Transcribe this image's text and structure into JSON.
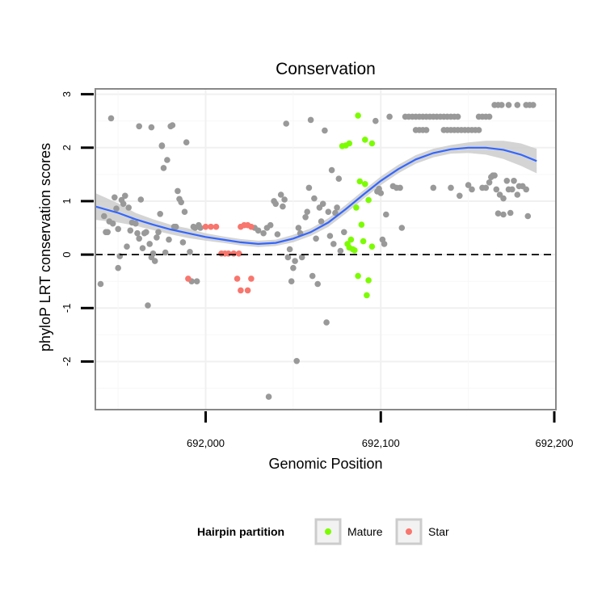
{
  "chart_data": {
    "type": "scatter",
    "title": "Conservation",
    "xlabel": "Genomic Position",
    "ylabel": "phyloP LRT conservation scores",
    "xlim": [
      691937,
      692200
    ],
    "ylim": [
      -2.9,
      3.1
    ],
    "x_ticks": [
      692000,
      692100,
      692200
    ],
    "x_tick_labels": [
      "692,000",
      "692,100",
      "692,200"
    ],
    "y_ticks": [
      -2,
      -1,
      0,
      1,
      2,
      3
    ],
    "y_tick_labels": [
      "-2",
      "-1",
      "0",
      "1",
      "2",
      "3"
    ],
    "grid": true,
    "reference_line": {
      "y": 0,
      "style": "dashed"
    },
    "legend": {
      "title": "Hairpin partition",
      "placement": "bottom",
      "entries": [
        {
          "name": "Mature",
          "color": "#7cfc00"
        },
        {
          "name": "Star",
          "color": "#f8766d"
        }
      ]
    },
    "colors": {
      "other": "#999999",
      "mature": "#7cfc00",
      "star": "#f8766d",
      "smooth": "#3366ff",
      "ribbon": "#cccccc"
    },
    "series": [
      {
        "name": "Mature",
        "color": "#7cfc00",
        "points": [
          [
            692082,
            2.08
          ],
          [
            692078,
            2.03
          ],
          [
            692080,
            2.04
          ],
          [
            692087,
            2.6
          ],
          [
            692091,
            2.15
          ],
          [
            692095,
            2.08
          ],
          [
            692088,
            1.37
          ],
          [
            692091,
            1.32
          ],
          [
            692093,
            1.02
          ],
          [
            692086,
            0.88
          ],
          [
            692089,
            0.56
          ],
          [
            692083,
            0.28
          ],
          [
            692090,
            0.25
          ],
          [
            692095,
            0.15
          ],
          [
            692081,
            0.2
          ],
          [
            692084,
            0.1
          ],
          [
            692085,
            0.08
          ],
          [
            692082,
            0.13
          ],
          [
            692087,
            -0.4
          ],
          [
            692093,
            -0.48
          ],
          [
            692092,
            -0.76
          ]
        ]
      },
      {
        "name": "Star",
        "color": "#f8766d",
        "points": [
          [
            692000,
            0.52
          ],
          [
            692003,
            0.52
          ],
          [
            692006,
            0.52
          ],
          [
            692009,
            0.02
          ],
          [
            692011,
            0.02
          ],
          [
            692013,
            0.02
          ],
          [
            692016,
            0.02
          ],
          [
            692019,
            0.02
          ],
          [
            692020,
            0.52
          ],
          [
            692022,
            0.55
          ],
          [
            692024,
            0.55
          ],
          [
            692026,
            0.52
          ],
          [
            691990,
            -0.45
          ],
          [
            692018,
            -0.45
          ],
          [
            692026,
            -0.45
          ],
          [
            692020,
            -0.67
          ],
          [
            692024,
            -0.67
          ]
        ]
      },
      {
        "name": "",
        "color": "#999999",
        "points": [
          [
            691940,
            -0.55
          ],
          [
            691942,
            0.72
          ],
          [
            691943,
            0.42
          ],
          [
            691944,
            0.42
          ],
          [
            691945,
            0.62
          ],
          [
            691947,
            0.58
          ],
          [
            691948,
            1.07
          ],
          [
            691949,
            0.86
          ],
          [
            691950,
            0.48
          ],
          [
            691951,
            -0.03
          ],
          [
            691952,
            1.02
          ],
          [
            691953,
            0.95
          ],
          [
            691954,
            1.1
          ],
          [
            691955,
            0.15
          ],
          [
            691956,
            0.88
          ],
          [
            691957,
            0.45
          ],
          [
            691958,
            0.6
          ],
          [
            691960,
            0.58
          ],
          [
            691961,
            0.4
          ],
          [
            691962,
            0.3
          ],
          [
            691963,
            1.03
          ],
          [
            691964,
            0.12
          ],
          [
            691965,
            0.4
          ],
          [
            691966,
            0.42
          ],
          [
            691967,
            -0.95
          ],
          [
            691968,
            0.2
          ],
          [
            691969,
            -0.05
          ],
          [
            691970,
            0.02
          ],
          [
            691971,
            -0.12
          ],
          [
            691972,
            0.32
          ],
          [
            691973,
            0.42
          ],
          [
            691974,
            0.76
          ],
          [
            691975,
            2.03
          ],
          [
            691976,
            1.62
          ],
          [
            691977,
            0.04
          ],
          [
            691978,
            1.77
          ],
          [
            691979,
            0.28
          ],
          [
            691980,
            2.4
          ],
          [
            691982,
            0.52
          ],
          [
            691983,
            0.52
          ],
          [
            691984,
            1.19
          ],
          [
            691985,
            1.04
          ],
          [
            691986,
            0.98
          ],
          [
            691987,
            0.23
          ],
          [
            691988,
            0.8
          ],
          [
            691989,
            2.1
          ],
          [
            691991,
            0.05
          ],
          [
            691992,
            -0.5
          ],
          [
            691993,
            0.52
          ],
          [
            691994,
            0.5
          ],
          [
            691995,
            -0.5
          ],
          [
            691996,
            0.55
          ],
          [
            691997,
            0.5
          ],
          [
            691946,
            2.55
          ],
          [
            691950,
            -0.25
          ],
          [
            691962,
            2.4
          ],
          [
            691969,
            2.38
          ],
          [
            691975,
            2.04
          ],
          [
            691981,
            2.42
          ],
          [
            692028,
            0.5
          ],
          [
            692030,
            0.45
          ],
          [
            692033,
            0.4
          ],
          [
            692035,
            0.5
          ],
          [
            692036,
            -2.66
          ],
          [
            692037,
            0.55
          ],
          [
            692039,
            1.0
          ],
          [
            692040,
            0.95
          ],
          [
            692041,
            0.38
          ],
          [
            692043,
            1.12
          ],
          [
            692044,
            0.9
          ],
          [
            692045,
            1.03
          ],
          [
            692046,
            2.45
          ],
          [
            692047,
            -0.05
          ],
          [
            692048,
            0.1
          ],
          [
            692049,
            -0.5
          ],
          [
            692050,
            -0.25
          ],
          [
            692051,
            -0.12
          ],
          [
            692052,
            -1.99
          ],
          [
            692053,
            0.5
          ],
          [
            692054,
            0.4
          ],
          [
            692055,
            -0.05
          ],
          [
            692057,
            0.7
          ],
          [
            692058,
            0.8
          ],
          [
            692059,
            1.25
          ],
          [
            692060,
            2.52
          ],
          [
            692061,
            -0.4
          ],
          [
            692062,
            1.05
          ],
          [
            692063,
            0.3
          ],
          [
            692064,
            -0.55
          ],
          [
            692065,
            0.88
          ],
          [
            692066,
            0.62
          ],
          [
            692067,
            0.95
          ],
          [
            692068,
            2.32
          ],
          [
            692069,
            -1.27
          ],
          [
            692070,
            0.8
          ],
          [
            692071,
            0.35
          ],
          [
            692072,
            1.58
          ],
          [
            692073,
            0.2
          ],
          [
            692074,
            0.78
          ],
          [
            692075,
            0.88
          ],
          [
            692076,
            1.42
          ],
          [
            692077,
            0.07
          ],
          [
            692079,
            0.42
          ],
          [
            692097,
            2.5
          ],
          [
            692098,
            1.18
          ],
          [
            692099,
            1.23
          ],
          [
            692100,
            1.15
          ],
          [
            692101,
            0.28
          ],
          [
            692102,
            0.2
          ],
          [
            692103,
            0.75
          ],
          [
            692105,
            2.58
          ],
          [
            692107,
            1.28
          ],
          [
            692109,
            1.25
          ],
          [
            692111,
            1.25
          ],
          [
            692112,
            0.5
          ],
          [
            692114,
            2.58
          ],
          [
            692116,
            2.58
          ],
          [
            692118,
            2.58
          ],
          [
            692120,
            2.58
          ],
          [
            692122,
            2.58
          ],
          [
            692124,
            2.58
          ],
          [
            692126,
            2.58
          ],
          [
            692128,
            2.58
          ],
          [
            692130,
            2.58
          ],
          [
            692132,
            2.58
          ],
          [
            692134,
            2.58
          ],
          [
            692136,
            2.58
          ],
          [
            692138,
            2.58
          ],
          [
            692140,
            2.58
          ],
          [
            692142,
            2.58
          ],
          [
            692144,
            2.58
          ],
          [
            692120,
            2.33
          ],
          [
            692122,
            2.33
          ],
          [
            692124,
            2.33
          ],
          [
            692126,
            2.33
          ],
          [
            692136,
            2.33
          ],
          [
            692138,
            2.33
          ],
          [
            692140,
            2.33
          ],
          [
            692142,
            2.33
          ],
          [
            692144,
            2.33
          ],
          [
            692146,
            2.33
          ],
          [
            692148,
            2.33
          ],
          [
            692150,
            2.33
          ],
          [
            692152,
            2.33
          ],
          [
            692154,
            2.33
          ],
          [
            692156,
            2.33
          ],
          [
            692130,
            1.25
          ],
          [
            692140,
            1.25
          ],
          [
            692145,
            1.1
          ],
          [
            692150,
            1.3
          ],
          [
            692152,
            1.22
          ],
          [
            692156,
            2.58
          ],
          [
            692158,
            2.58
          ],
          [
            692160,
            2.58
          ],
          [
            692162,
            2.58
          ],
          [
            692158,
            1.25
          ],
          [
            692160,
            1.25
          ],
          [
            692162,
            1.35
          ],
          [
            692163,
            1.45
          ],
          [
            692164,
            1.48
          ],
          [
            692165,
            1.48
          ],
          [
            692166,
            1.22
          ],
          [
            692167,
            0.77
          ],
          [
            692168,
            1.12
          ],
          [
            692170,
            0.75
          ],
          [
            692172,
            1.38
          ],
          [
            692173,
            1.22
          ],
          [
            692175,
            1.22
          ],
          [
            692176,
            1.38
          ],
          [
            692178,
            1.12
          ],
          [
            692179,
            1.28
          ],
          [
            692181,
            1.28
          ],
          [
            692183,
            1.22
          ],
          [
            692184,
            0.72
          ],
          [
            692165,
            2.8
          ],
          [
            692167,
            2.8
          ],
          [
            692169,
            2.8
          ],
          [
            692173,
            2.8
          ],
          [
            692178,
            2.8
          ],
          [
            692183,
            2.8
          ],
          [
            692185,
            2.8
          ],
          [
            692187,
            2.8
          ],
          [
            692170,
            1.05
          ],
          [
            692174,
            0.78
          ]
        ]
      }
    ],
    "smooth": {
      "x": [
        691937,
        691950,
        691960,
        691970,
        691980,
        691990,
        692000,
        692010,
        692020,
        692030,
        692040,
        692050,
        692060,
        692070,
        692080,
        692090,
        692100,
        692110,
        692120,
        692130,
        692140,
        692150,
        692160,
        692170,
        692180,
        692189
      ],
      "y": [
        0.9,
        0.78,
        0.66,
        0.56,
        0.47,
        0.4,
        0.33,
        0.28,
        0.23,
        0.2,
        0.22,
        0.3,
        0.42,
        0.6,
        0.85,
        1.12,
        1.38,
        1.6,
        1.78,
        1.9,
        1.97,
        2.0,
        2.0,
        1.96,
        1.87,
        1.75
      ],
      "lower": [
        0.65,
        0.6,
        0.54,
        0.46,
        0.38,
        0.31,
        0.26,
        0.22,
        0.17,
        0.14,
        0.16,
        0.23,
        0.35,
        0.52,
        0.77,
        1.04,
        1.3,
        1.52,
        1.7,
        1.82,
        1.89,
        1.9,
        1.87,
        1.79,
        1.66,
        1.52
      ],
      "upper": [
        1.15,
        0.96,
        0.78,
        0.66,
        0.56,
        0.49,
        0.4,
        0.34,
        0.29,
        0.26,
        0.28,
        0.37,
        0.49,
        0.68,
        0.93,
        1.2,
        1.46,
        1.68,
        1.86,
        1.98,
        2.05,
        2.1,
        2.13,
        2.13,
        2.08,
        1.98
      ]
    }
  }
}
